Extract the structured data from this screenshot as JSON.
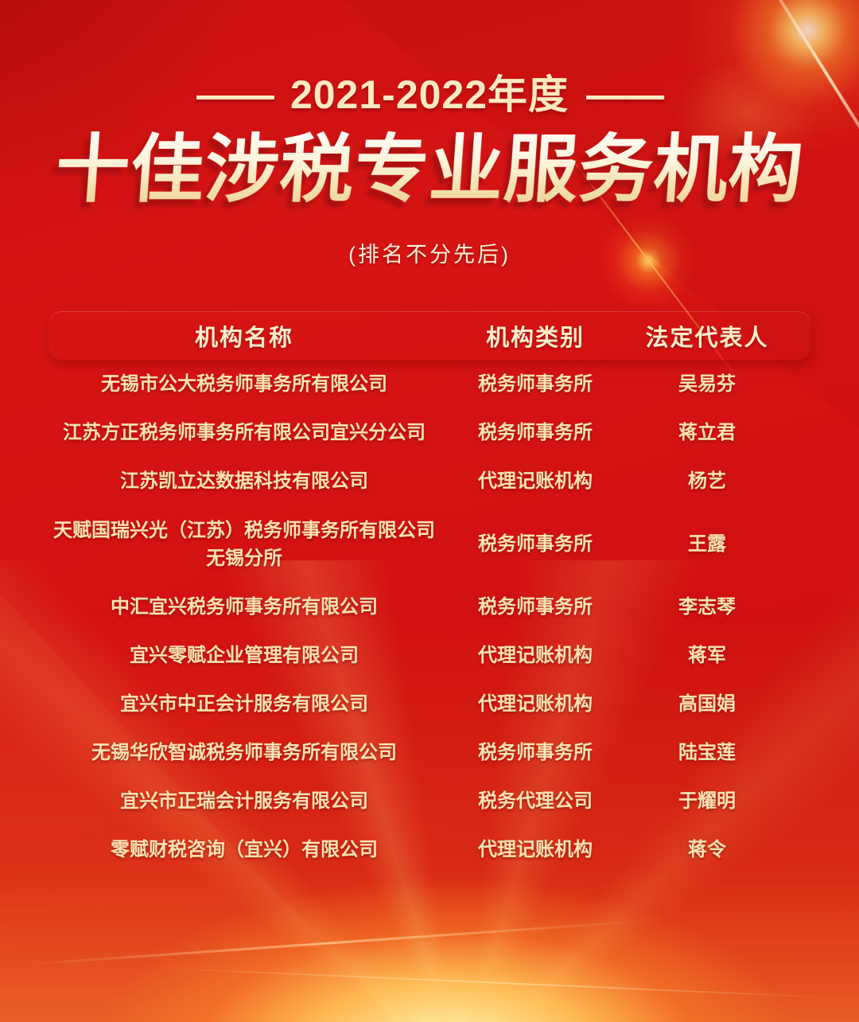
{
  "poster": {
    "year_dash": "——",
    "year_line": "2021-2022年度",
    "title": "十佳涉税专业服务机构",
    "subtitle": "(排名不分先后)",
    "colors": {
      "background_red": "#d31112",
      "header_band_red": "#e5211a",
      "row_text_gold": "#f8e3b2",
      "title_cream": "#fdf3da",
      "title_shadow_red": "#9e0e0e",
      "glow_orange": "#ffbc55"
    },
    "table": {
      "headers": [
        "机构名称",
        "机构类别",
        "法定代表人"
      ],
      "rows": [
        {
          "name": "无锡市公大税务师事务所有限公司",
          "category": "税务师事务所",
          "representative": "吴易芬"
        },
        {
          "name": "江苏方正税务师事务所有限公司宜兴分公司",
          "category": "税务师事务所",
          "representative": "蒋立君"
        },
        {
          "name": "江苏凯立达数据科技有限公司",
          "category": "代理记账机构",
          "representative": "杨艺"
        },
        {
          "name": "天赋国瑞兴光（江苏）税务师事务所有限公司无锡分所",
          "category": "税务师事务所",
          "representative": "王露"
        },
        {
          "name": "中汇宜兴税务师事务所有限公司",
          "category": "税务师事务所",
          "representative": "李志琴"
        },
        {
          "name": "宜兴零赋企业管理有限公司",
          "category": "代理记账机构",
          "representative": "蒋军"
        },
        {
          "name": "宜兴市中正会计服务有限公司",
          "category": "代理记账机构",
          "representative": "高国娟"
        },
        {
          "name": "无锡华欣智诚税务师事务所有限公司",
          "category": "税务师事务所",
          "representative": "陆宝莲"
        },
        {
          "name": "宜兴市正瑞会计服务有限公司",
          "category": "税务代理公司",
          "representative": "于耀明"
        },
        {
          "name": "零赋财税咨询（宜兴）有限公司",
          "category": "代理记账机构",
          "representative": "蒋令"
        }
      ]
    }
  }
}
